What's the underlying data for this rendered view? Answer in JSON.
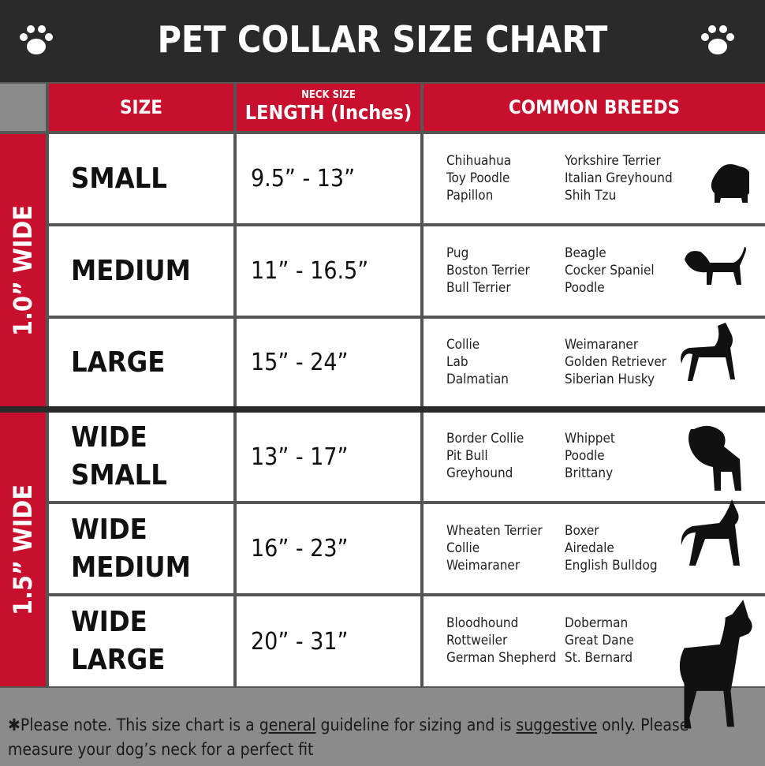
{
  "header": {
    "title": "PET COLLAR SIZE CHART"
  },
  "columns": {
    "size": "SIZE",
    "length_top": "NECK SIZE",
    "length": "LENGTH (Inches)",
    "breeds": "COMMON BREEDS"
  },
  "groups": [
    {
      "label": "1.0” WIDE",
      "rows": [
        {
          "size": "SMALL",
          "length": "9.5” - 13”",
          "breeds_a": [
            "Chihuahua",
            "Toy Poodle",
            "Papillon"
          ],
          "breeds_b": [
            "Yorkshire Terrier",
            "Italian Greyhound",
            "Shih Tzu"
          ]
        },
        {
          "size": "MEDIUM",
          "length": "11” - 16.5”",
          "breeds_a": [
            "Pug",
            "Boston Terrier",
            "Bull Terrier"
          ],
          "breeds_b": [
            "Beagle",
            "Cocker Spaniel",
            "Poodle"
          ]
        },
        {
          "size": "LARGE",
          "length": "15” - 24”",
          "breeds_a": [
            "Collie",
            "Lab",
            "Dalmatian"
          ],
          "breeds_b": [
            "Weimaraner",
            "Golden Retriever",
            "Siberian Husky"
          ]
        }
      ]
    },
    {
      "label": "1.5” WIDE",
      "rows": [
        {
          "size": "WIDE SMALL",
          "length": "13” - 17”",
          "breeds_a": [
            "Border Collie",
            "Pit Bull",
            "Greyhound"
          ],
          "breeds_b": [
            "Whippet",
            "Poodle",
            "Brittany"
          ]
        },
        {
          "size": "WIDE MEDIUM",
          "length": "16” - 23”",
          "breeds_a": [
            "Wheaten Terrier",
            "Collie",
            "Weimaraner"
          ],
          "breeds_b": [
            "Boxer",
            "Airedale",
            "English Bulldog"
          ]
        },
        {
          "size": "WIDE LARGE",
          "length": "20” - 31”",
          "breeds_a": [
            "Bloodhound",
            "Rottweiler",
            "German Shepherd"
          ],
          "breeds_b": [
            "Doberman",
            "Great Dane",
            "St. Bernard"
          ]
        }
      ]
    }
  ],
  "note": {
    "parts": [
      "✱Please note. This size chart is a ",
      "general",
      " guideline for sizing and is ",
      "suggestive",
      " only. Please measure your dog’s neck for a perfect fit"
    ]
  }
}
